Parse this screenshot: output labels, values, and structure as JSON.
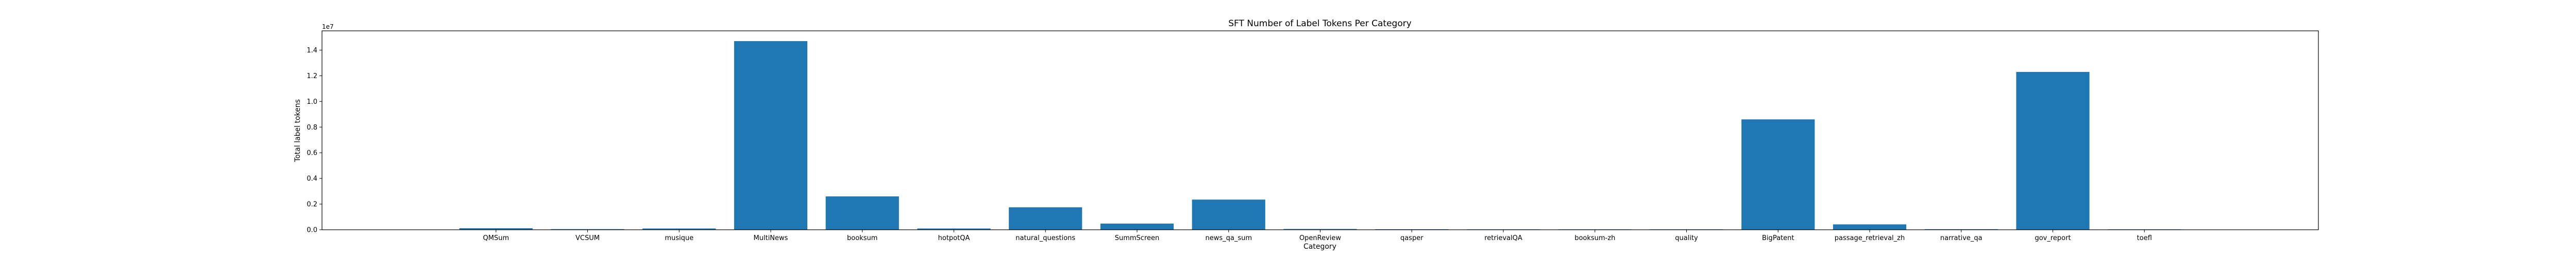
{
  "chart_data": {
    "type": "bar",
    "title": "SFT Number of Label Tokens Per Category",
    "xlabel": "Category",
    "ylabel": "Total label tokens",
    "y_offset_label": "1e7",
    "y_scale": 10000000,
    "ylim": [
      0,
      15500000
    ],
    "yticks": [
      0.0,
      0.2,
      0.4,
      0.6,
      0.8,
      1.0,
      1.2,
      1.4
    ],
    "grid": false,
    "color": "#1f77b4",
    "categories": [
      "QMSum",
      "VCSUM",
      "musique",
      "MultiNews",
      "booksum",
      "hotpotQA",
      "natural_questions",
      "SummScreen",
      "news_qa_sum",
      "OpenReview",
      "qasper",
      "retrievalQA",
      "booksum-zh",
      "quality",
      "BigPatent",
      "passage_retrieval_zh",
      "narrative_qa",
      "gov_report",
      "toefl"
    ],
    "values": [
      120000,
      50000,
      100000,
      14700000,
      2600000,
      100000,
      1750000,
      480000,
      2350000,
      60000,
      40000,
      10000,
      30000,
      8000,
      8600000,
      420000,
      45000,
      12300000,
      10000
    ]
  }
}
